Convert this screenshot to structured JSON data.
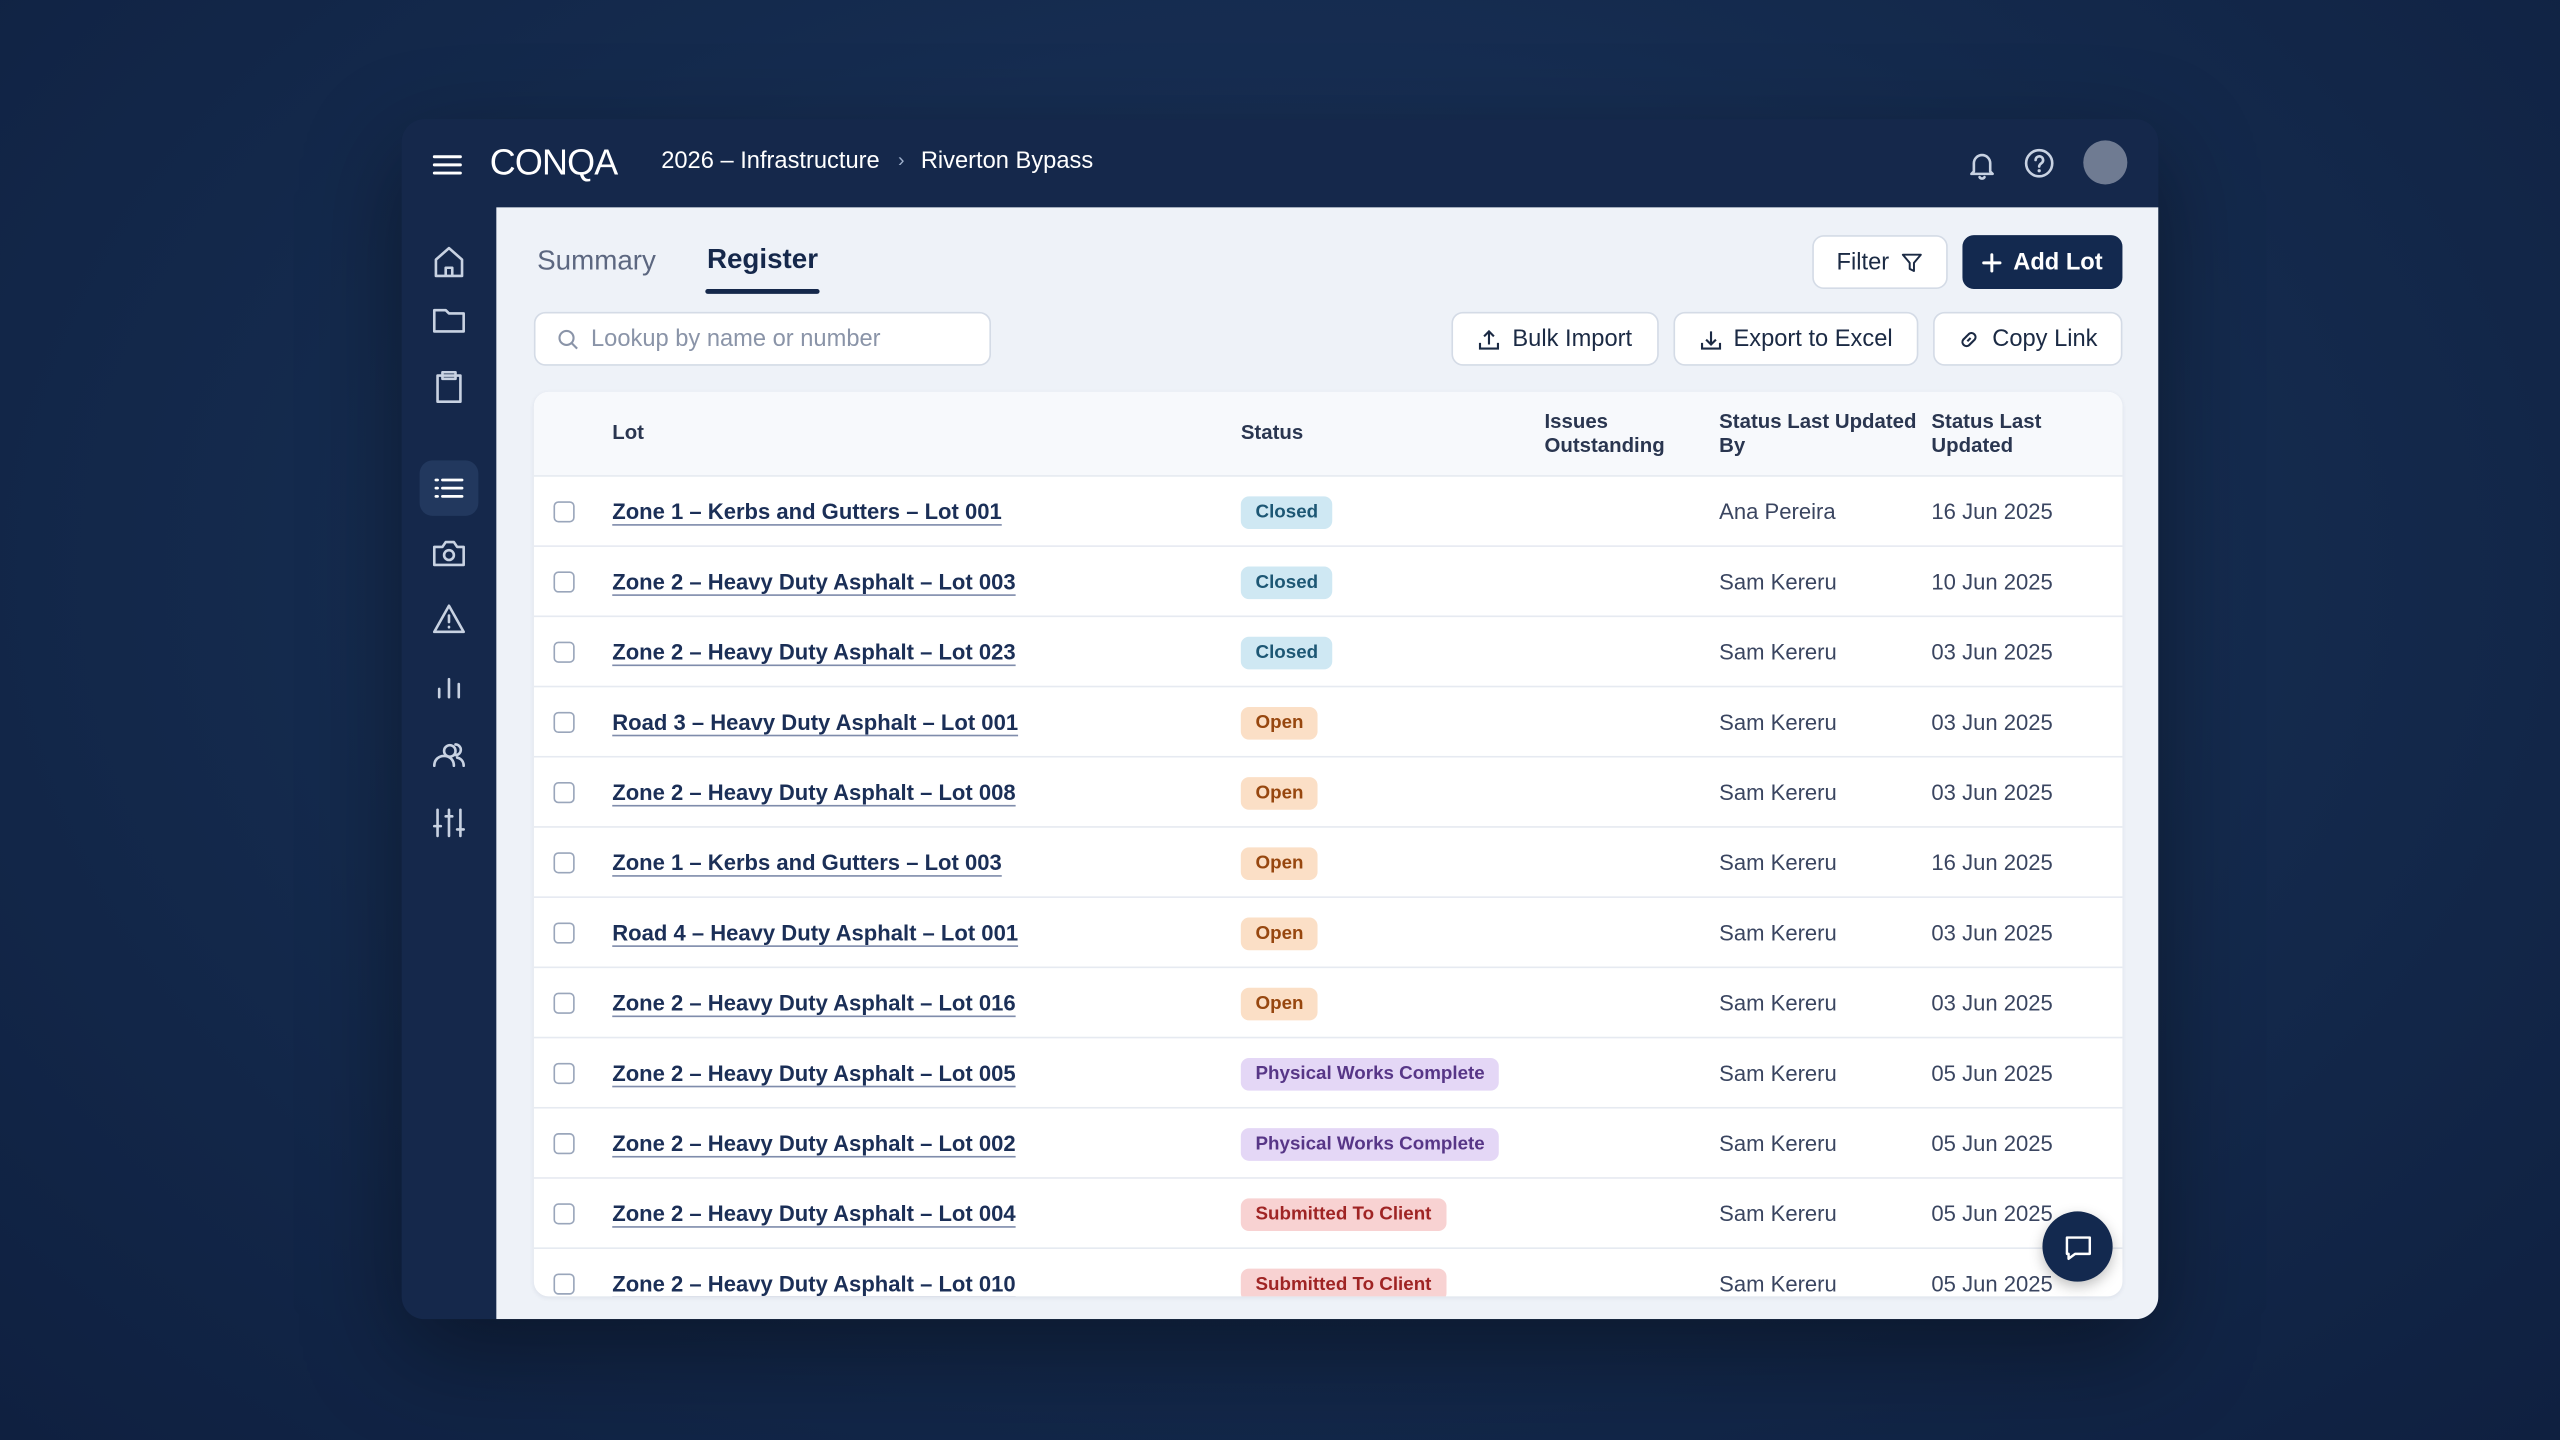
{
  "header": {
    "logo": "CONQA",
    "breadcrumb": [
      "2026 – Infrastructure",
      "Riverton Bypass"
    ]
  },
  "tabs": [
    "Summary",
    "Register"
  ],
  "actions": {
    "filter": "Filter",
    "add": "Add Lot",
    "search_placeholder": "Lookup by name or number",
    "bulk_import": "Bulk Import",
    "export": "Export to Excel",
    "copy_link": "Copy Link"
  },
  "table": {
    "columns": [
      "Lot",
      "Status",
      "Issues Outstanding",
      "Status Last Updated By",
      "Status Last Updated"
    ],
    "rows": [
      [
        "Zone 1 – Kerbs and Gutters – Lot 001",
        "Closed",
        "",
        "Ana Pereira",
        "16 Jun 2025"
      ],
      [
        "Zone 2 – Heavy Duty Asphalt – Lot 003",
        "Closed",
        "",
        "Sam Kereru",
        "10 Jun 2025"
      ],
      [
        "Zone 2 – Heavy Duty Asphalt – Lot 023",
        "Closed",
        "",
        "Sam Kereru",
        "03 Jun 2025"
      ],
      [
        "Road 3 – Heavy Duty Asphalt – Lot 001",
        "Open",
        "",
        "Sam Kereru",
        "03 Jun 2025"
      ],
      [
        "Zone 2 – Heavy Duty Asphalt – Lot 008",
        "Open",
        "",
        "Sam Kereru",
        "03 Jun 2025"
      ],
      [
        "Zone 1 – Kerbs and Gutters – Lot 003",
        "Open",
        "",
        "Sam Kereru",
        "16 Jun 2025"
      ],
      [
        "Road 4 – Heavy Duty Asphalt – Lot 001",
        "Open",
        "",
        "Sam Kereru",
        "03 Jun 2025"
      ],
      [
        "Zone 2 – Heavy Duty Asphalt – Lot 016",
        "Open",
        "",
        "Sam Kereru",
        "03 Jun 2025"
      ],
      [
        "Zone 2 – Heavy Duty Asphalt – Lot 005",
        "Physical Works Complete",
        "",
        "Sam Kereru",
        "05 Jun 2025"
      ],
      [
        "Zone 2 – Heavy Duty Asphalt – Lot 002",
        "Physical Works Complete",
        "",
        "Sam Kereru",
        "05 Jun 2025"
      ],
      [
        "Zone 2 – Heavy Duty Asphalt – Lot 004",
        "Submitted To Client",
        "",
        "Sam Kereru",
        "05 Jun 2025"
      ],
      [
        "Zone 2 – Heavy Duty Asphalt – Lot 010",
        "Submitted To Client",
        "",
        "Sam Kereru",
        "05 Jun 2025"
      ]
    ]
  }
}
